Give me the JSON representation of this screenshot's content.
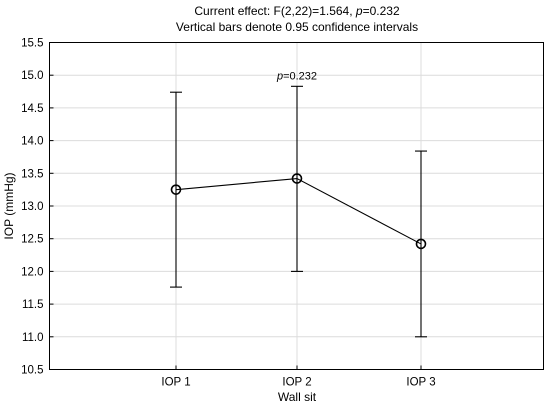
{
  "chart_data": {
    "type": "line",
    "title_prefix": "Current effect: F(2,22)=1.564, ",
    "title_p_label": "p",
    "title_p_value": "=0.232",
    "subtitle": "Vertical bars denote 0.95 confidence intervals",
    "xlabel": "Wall sit",
    "ylabel": "IOP (mmHg)",
    "categories": [
      "IOP 1",
      "IOP 2",
      "IOP 3"
    ],
    "ylim": [
      10.5,
      15.5
    ],
    "yticks": [
      "10.5",
      "11.0",
      "11.5",
      "12.0",
      "12.5",
      "13.0",
      "13.5",
      "14.0",
      "14.5",
      "15.0",
      "15.5"
    ],
    "grid": true,
    "series": [
      {
        "values": [
          13.25,
          13.42,
          12.42
        ],
        "lower": [
          11.76,
          12.0,
          11.0
        ],
        "upper": [
          14.74,
          14.83,
          13.84
        ]
      }
    ],
    "annotation": {
      "category": "IOP 2",
      "p_label": "p",
      "p_value": "=0.232"
    }
  }
}
